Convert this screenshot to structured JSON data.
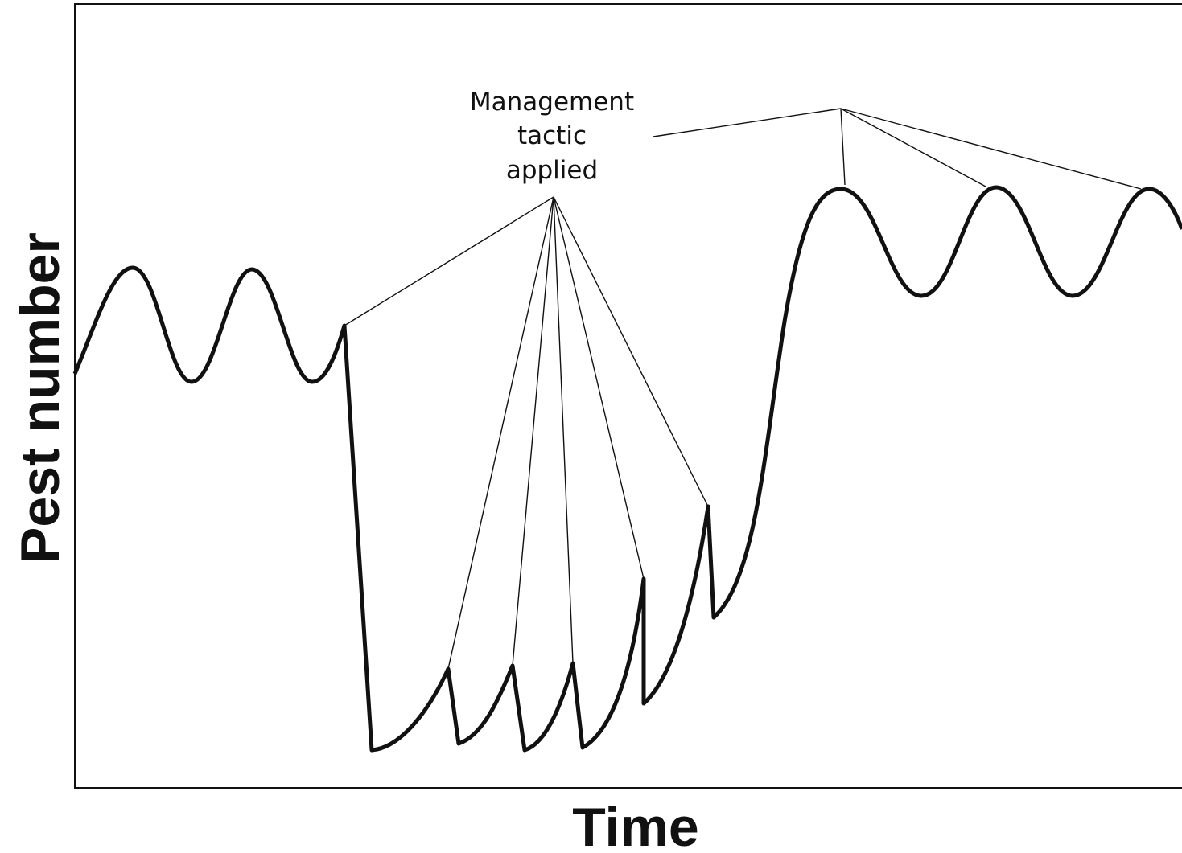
{
  "annotation": {
    "lines": [
      "Management",
      "tactic",
      "applied"
    ]
  },
  "y_axis_label": "Pest number",
  "x_axis_label": "Time"
}
